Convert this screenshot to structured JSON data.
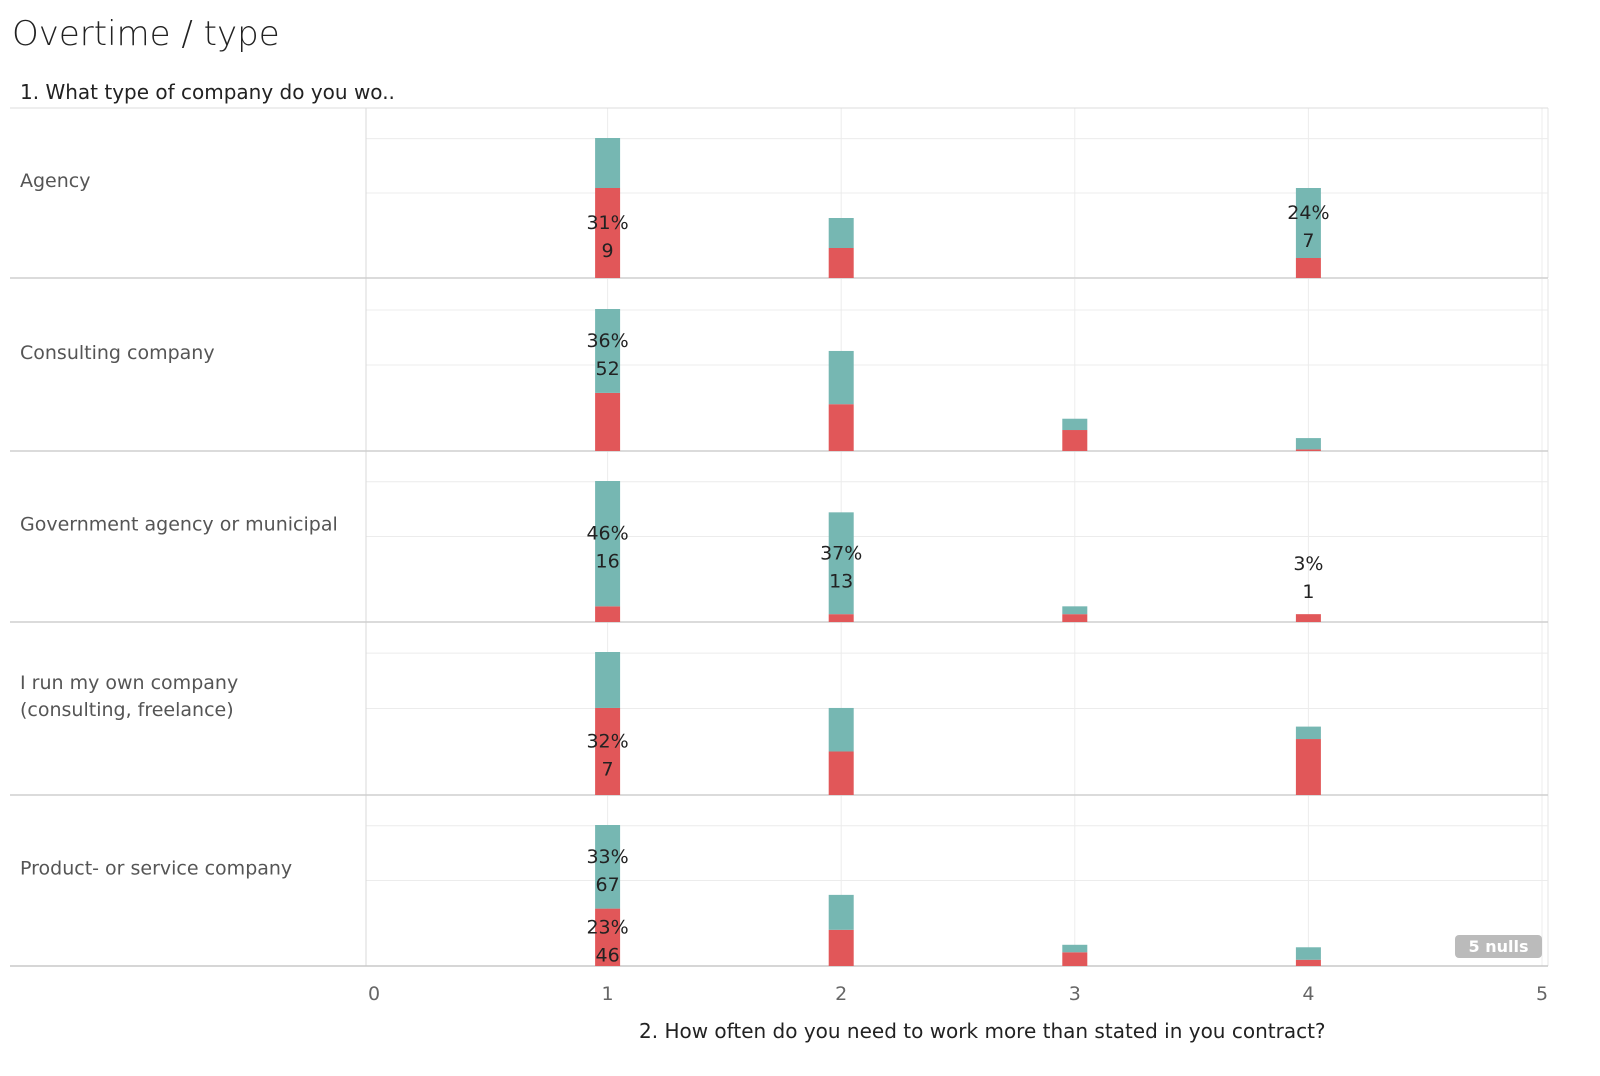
{
  "title": "Overtime / type",
  "chart_data": {
    "type": "bar",
    "stacked": true,
    "row_header": "1. What type of company do you wo..",
    "xlabel": "2. How often do you need to work more than stated in you contract?",
    "xlim": [
      0,
      5
    ],
    "x_ticks": [
      "0",
      "1",
      "2",
      "3",
      "4",
      "5"
    ],
    "null_badge": "5 nulls",
    "colors": {
      "bottom": "#e15759",
      "top": "#76b7b2"
    },
    "rows": [
      {
        "label": "Agency",
        "bars": [
          {
            "x": 1,
            "bottom": 9,
            "top": 5
          },
          {
            "x": 2,
            "bottom": 3,
            "top": 3
          },
          {
            "x": 4,
            "bottom": 2,
            "top": 7
          }
        ],
        "labels": [
          {
            "x": 1,
            "pct": "31%",
            "count": "9",
            "anchor": "bottom_mid"
          },
          {
            "x": 4,
            "pct": "24%",
            "count": "7",
            "anchor": "top_mid"
          }
        ]
      },
      {
        "label": "Consulting company",
        "bars": [
          {
            "x": 1,
            "bottom": 36,
            "top": 52
          },
          {
            "x": 2,
            "bottom": 29,
            "top": 33
          },
          {
            "x": 3,
            "bottom": 13,
            "top": 7
          },
          {
            "x": 4,
            "bottom": 1,
            "top": 7
          }
        ],
        "labels": [
          {
            "x": 1,
            "pct": "36%",
            "count": "52",
            "anchor": "top_mid"
          }
        ]
      },
      {
        "label": "Government agency or municipal",
        "bars": [
          {
            "x": 1,
            "bottom": 2,
            "top": 16
          },
          {
            "x": 2,
            "bottom": 1,
            "top": 13
          },
          {
            "x": 3,
            "bottom": 1,
            "top": 1
          },
          {
            "x": 4,
            "bottom": 1,
            "top": 0
          }
        ],
        "labels": [
          {
            "x": 1,
            "pct": "46%",
            "count": "16",
            "anchor": "top_mid"
          },
          {
            "x": 2,
            "pct": "37%",
            "count": "13",
            "anchor": "top_mid"
          },
          {
            "x": 4,
            "pct": "3%",
            "count": "1",
            "anchor": "above"
          }
        ]
      },
      {
        "label": "I run my own company (consulting, freelance)",
        "bars": [
          {
            "x": 1,
            "bottom": 7,
            "top": 4.5
          },
          {
            "x": 2,
            "bottom": 3.5,
            "top": 3.5
          },
          {
            "x": 4,
            "bottom": 4.5,
            "top": 1
          }
        ],
        "labels": [
          {
            "x": 1,
            "pct": "32%",
            "count": "7",
            "anchor": "bottom_mid"
          }
        ]
      },
      {
        "label": "Product- or service company",
        "bars": [
          {
            "x": 1,
            "bottom": 46,
            "top": 67
          },
          {
            "x": 2,
            "bottom": 29,
            "top": 28
          },
          {
            "x": 3,
            "bottom": 11,
            "top": 6
          },
          {
            "x": 4,
            "bottom": 5,
            "top": 10
          }
        ],
        "labels": [
          {
            "x": 1,
            "pct": "33%",
            "count": "67",
            "anchor": "top_mid"
          },
          {
            "x": 1,
            "pct": "23%",
            "count": "46",
            "anchor": "bottom_mid"
          }
        ]
      }
    ]
  }
}
